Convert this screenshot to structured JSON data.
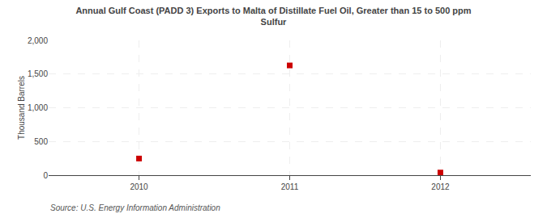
{
  "chart_data": {
    "type": "scatter",
    "title": "Annual Gulf Coast (PADD 3) Exports to Malta of Distillate Fuel Oil, Greater than 15 to 500 ppm\nSulfur",
    "ylabel": "Thousand Barrels",
    "annotations": [
      "Source: U.S. Energy Information Administration"
    ],
    "x": [
      2010,
      2011,
      2012
    ],
    "values": [
      247,
      1628,
      39
    ],
    "color": "#cc0000",
    "marker": "square",
    "xlim": [
      2009.4,
      2012.6
    ],
    "xticks": [
      2010,
      2011,
      2012
    ],
    "ylim": [
      0,
      2000
    ],
    "yticks": [
      0,
      500,
      {
        "value": 1000,
        "label": "1,000"
      },
      {
        "value": 1500,
        "label": "1,500"
      },
      {
        "value": 2000,
        "label": "2,000"
      }
    ],
    "grid": true
  }
}
